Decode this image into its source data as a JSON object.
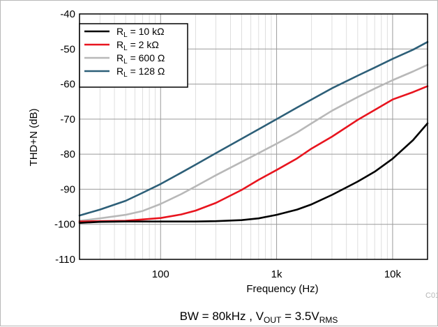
{
  "chart_data": {
    "type": "line",
    "x_scale": "log",
    "xlabel": "Frequency (Hz)",
    "ylabel": "THD+N (dB)",
    "xlim": [
      20,
      20000
    ],
    "ylim": [
      -110,
      -40
    ],
    "grid": true,
    "legend_position": "top-left",
    "x_ticks": [
      {
        "value": 100,
        "label": "100"
      },
      {
        "value": 1000,
        "label": "1k"
      },
      {
        "value": 10000,
        "label": "10k"
      }
    ],
    "y_ticks": [
      {
        "value": -40,
        "label": "-40"
      },
      {
        "value": -50,
        "label": "-50"
      },
      {
        "value": -60,
        "label": "-60"
      },
      {
        "value": -70,
        "label": "-70"
      },
      {
        "value": -80,
        "label": "-80"
      },
      {
        "value": -90,
        "label": "-90"
      },
      {
        "value": -100,
        "label": "-100"
      },
      {
        "value": -110,
        "label": "-110"
      }
    ],
    "series": [
      {
        "name": "RL = 10 kΩ",
        "label_main": "R",
        "label_sub": "L",
        "label_rest": " = 10 kΩ",
        "color": "#000000",
        "x": [
          20,
          30,
          50,
          100,
          200,
          300,
          500,
          700,
          1000,
          1500,
          2000,
          3000,
          5000,
          7000,
          10000,
          15000,
          20000
        ],
        "y": [
          -99.6,
          -99.3,
          -99.2,
          -99.2,
          -99.2,
          -99.1,
          -98.8,
          -98.3,
          -97.3,
          -95.8,
          -94.3,
          -91.6,
          -87.8,
          -85.0,
          -81.3,
          -76.0,
          -71.2
        ]
      },
      {
        "name": "RL = 2 kΩ",
        "label_main": "R",
        "label_sub": "L",
        "label_rest": " = 2 kΩ",
        "color": "#e8141e",
        "x": [
          20,
          30,
          50,
          100,
          150,
          200,
          300,
          500,
          700,
          1000,
          1500,
          2000,
          3000,
          5000,
          7000,
          10000,
          15000,
          20000
        ],
        "y": [
          -99.2,
          -99.1,
          -99.0,
          -98.2,
          -97.2,
          -96.1,
          -93.9,
          -90.2,
          -87.3,
          -84.5,
          -81.2,
          -78.4,
          -75.0,
          -70.2,
          -67.4,
          -64.4,
          -62.3,
          -60.6
        ]
      },
      {
        "name": "RL = 600 Ω",
        "label_main": "R",
        "label_sub": "L",
        "label_rest": " = 600 Ω",
        "color": "#b8b8b8",
        "x": [
          20,
          30,
          50,
          70,
          100,
          150,
          200,
          300,
          500,
          700,
          1000,
          1500,
          2000,
          3000,
          5000,
          7000,
          10000,
          15000,
          20000
        ],
        "y": [
          -99.0,
          -98.3,
          -97.3,
          -96.2,
          -94.2,
          -91.4,
          -89.2,
          -86.0,
          -82.2,
          -79.7,
          -77.0,
          -73.8,
          -71.2,
          -67.6,
          -63.7,
          -61.3,
          -58.9,
          -56.4,
          -54.5
        ]
      },
      {
        "name": "RL = 128 Ω",
        "label_main": "R",
        "label_sub": "L",
        "label_rest": " = 128 Ω",
        "color": "#2d5f78",
        "x": [
          20,
          30,
          50,
          70,
          100,
          150,
          200,
          300,
          500,
          700,
          1000,
          1500,
          2000,
          3000,
          5000,
          7000,
          10000,
          15000,
          20000
        ],
        "y": [
          -97.5,
          -95.8,
          -93.3,
          -91.0,
          -88.5,
          -85.3,
          -83.0,
          -79.7,
          -75.6,
          -72.9,
          -70.0,
          -66.7,
          -64.4,
          -61.2,
          -57.6,
          -55.3,
          -52.8,
          -50.2,
          -48.0
        ]
      }
    ]
  },
  "figure_id": "C01",
  "caption": {
    "part1": "BW = 80kHz , V",
    "sub1": "OUT",
    "part2": " = 3.5V",
    "sub2": "RMS"
  }
}
